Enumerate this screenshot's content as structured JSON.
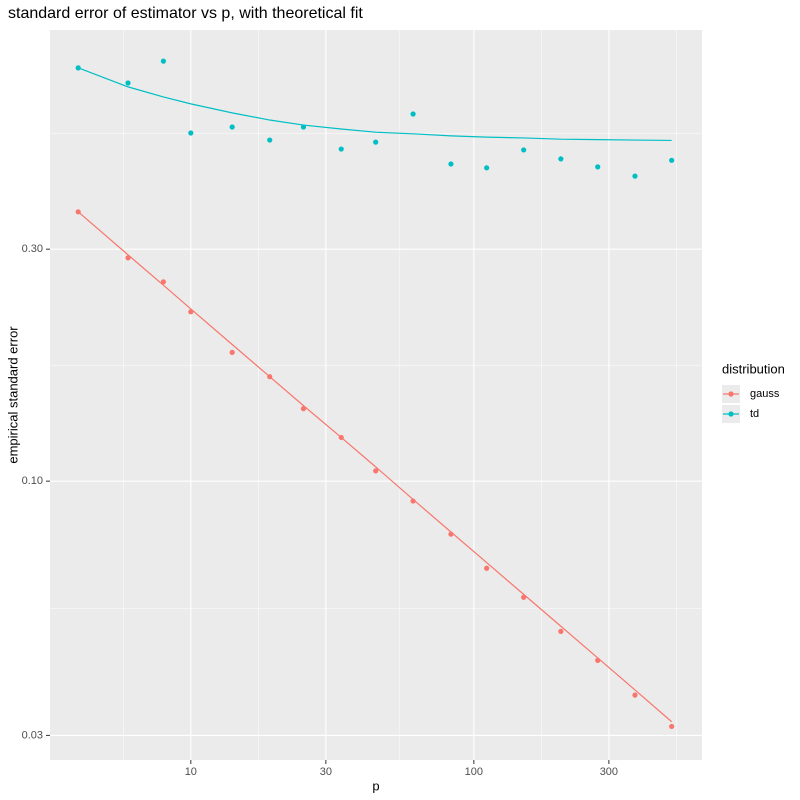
{
  "chart_data": {
    "type": "line",
    "title": "standard error of estimator vs p, with theoretical fit",
    "x_label": "p",
    "y_label": "empirical standard error",
    "x_log": true,
    "y_log": true,
    "grid": true,
    "x": [
      4,
      6,
      8,
      10,
      14,
      19,
      25,
      34,
      45,
      61,
      83,
      111,
      150,
      203,
      274,
      371,
      500
    ],
    "series": [
      {
        "name": "gauss",
        "color": "#F8766D",
        "values": [
          0.358,
          0.288,
          0.257,
          0.223,
          0.184,
          0.164,
          0.141,
          0.123,
          0.105,
          0.091,
          0.0778,
          0.0662,
          0.0577,
          0.0491,
          0.0428,
          0.0363,
          0.0313
        ],
        "fit": [
          0.358,
          0.292,
          0.253,
          0.226,
          0.191,
          0.164,
          0.143,
          0.123,
          0.107,
          0.0917,
          0.0786,
          0.068,
          0.0585,
          0.0503,
          0.0433,
          0.0372,
          0.032
        ]
      },
      {
        "name": "td",
        "color": "#00BFC4",
        "values": [
          0.708,
          0.659,
          0.731,
          0.52,
          0.535,
          0.503,
          0.535,
          0.482,
          0.498,
          0.569,
          0.449,
          0.441,
          0.48,
          0.46,
          0.443,
          0.424,
          0.457
        ],
        "fit": [
          0.708,
          0.647,
          0.617,
          0.597,
          0.572,
          0.553,
          0.54,
          0.53,
          0.522,
          0.518,
          0.513,
          0.51,
          0.508,
          0.505,
          0.504,
          0.503,
          0.502
        ]
      }
    ],
    "xlim": [
      3.18,
      640
    ],
    "ylim": [
      0.0267,
      0.847
    ],
    "xticks": [
      10,
      30,
      100,
      300
    ],
    "yticks": [
      0.03,
      {
        "value": 0.1,
        "label": "0.10"
      },
      {
        "value": 0.3,
        "label": "0.30"
      }
    ],
    "legend_title": "distribution",
    "legend_position": "right"
  }
}
